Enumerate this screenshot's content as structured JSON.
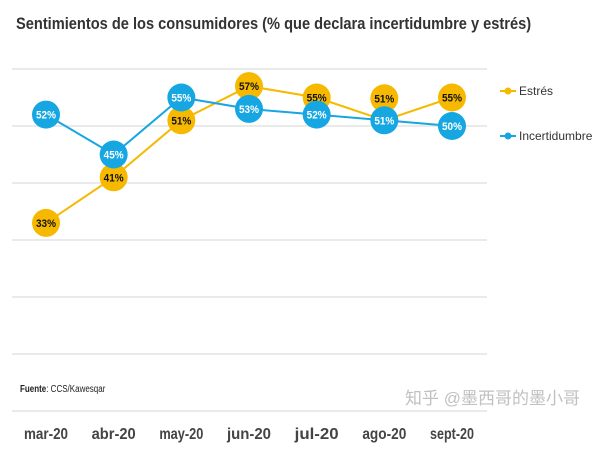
{
  "chart_data": {
    "type": "line",
    "title": "Sentimientos de los consumidores (% que declara incertidumbre y estrés)",
    "categories": [
      "mar-20",
      "abr-20",
      "may-20",
      "jun-20",
      "jul-20",
      "ago-20",
      "sept-20"
    ],
    "series": [
      {
        "name": "Estrés",
        "color": "#f6b900",
        "label_color": "#111111",
        "values": [
          33,
          41,
          51,
          57,
          55,
          51,
          55
        ]
      },
      {
        "name": "Incertidumbre",
        "color": "#16a7e2",
        "label_color": "#ffffff",
        "values": [
          52,
          45,
          55,
          53,
          52,
          51,
          50
        ]
      }
    ],
    "ylim": [
      0,
      60
    ],
    "grid": true,
    "legend": "right",
    "xlabel": "",
    "ylabel": ""
  },
  "source": {
    "label": "Fuente",
    "text": ": CCS/Kawesqar"
  },
  "watermark": "知乎 @墨西哥的墨小哥"
}
